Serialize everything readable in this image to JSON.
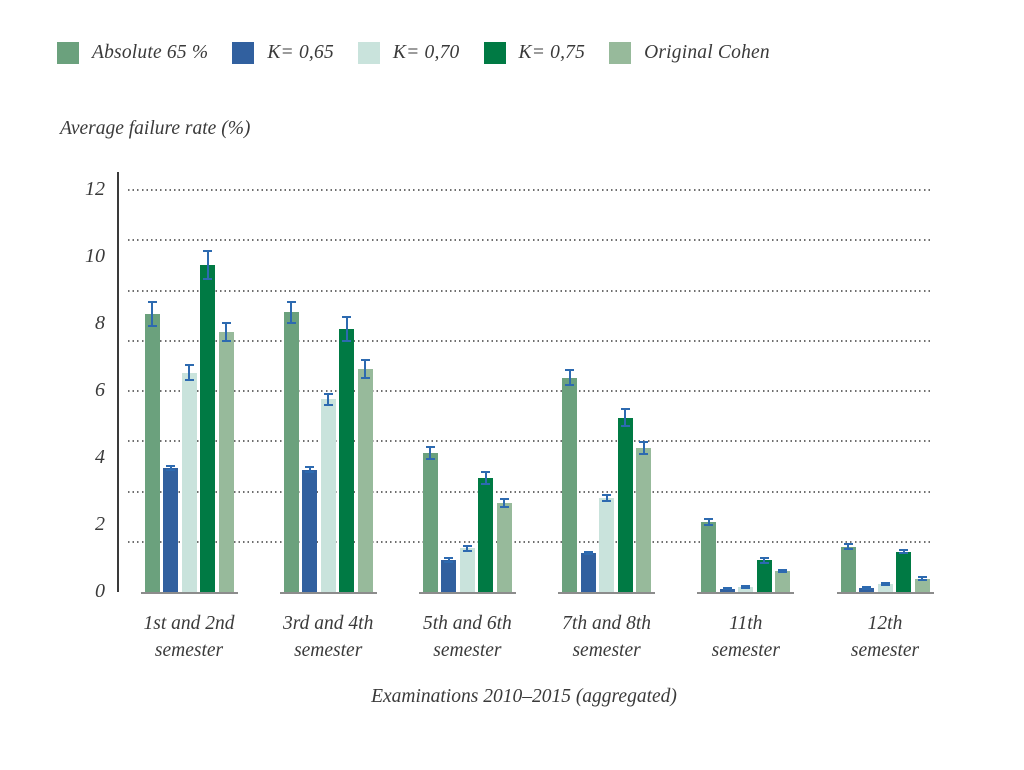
{
  "colors": {
    "text": "#3a3a3a",
    "axis_line": "#3a3a3a",
    "baseline": "#8c8c8c",
    "gridline_dots": "#6e6e6e",
    "error_bar": "#2d6ab0",
    "background": "#ffffff"
  },
  "chart_data": {
    "type": "bar",
    "title": "",
    "ylabel": "Average failure rate (%)",
    "xlabel": "Examinations 2010–2015 (aggregated)",
    "categories": [
      [
        "1st and 2nd",
        "semester"
      ],
      [
        "3rd and 4th",
        "semester"
      ],
      [
        "5th and 6th",
        "semester"
      ],
      [
        "7th and 8th",
        "semester"
      ],
      [
        "11th",
        "semester"
      ],
      [
        "12th",
        "semester"
      ]
    ],
    "series": [
      {
        "name": "Absolute 65 %",
        "color": "#6ba17d",
        "values": [
          8.3,
          8.35,
          4.15,
          6.4,
          2.1,
          1.35
        ],
        "errors": [
          0.4,
          0.35,
          0.2,
          0.25,
          0.12,
          0.1
        ]
      },
      {
        "name": "K= 0,65",
        "color": "#31609f",
        "values": [
          3.7,
          3.65,
          0.95,
          1.15,
          0.1,
          0.12
        ],
        "errors": [
          0.1,
          0.1,
          0.08,
          0.06,
          0.05,
          0.05
        ]
      },
      {
        "name": "K= 0,70",
        "color": "#c9e3dc",
        "values": [
          6.55,
          5.75,
          1.3,
          2.8,
          0.15,
          0.25
        ],
        "errors": [
          0.25,
          0.2,
          0.1,
          0.12,
          0.06,
          0.06
        ]
      },
      {
        "name": "K= 0,75",
        "color": "#007a44",
        "values": [
          9.75,
          7.85,
          3.4,
          5.2,
          0.95,
          1.2
        ],
        "errors": [
          0.45,
          0.4,
          0.2,
          0.28,
          0.1,
          0.08
        ]
      },
      {
        "name": "Original Cohen",
        "color": "#97ba9b",
        "values": [
          7.75,
          6.65,
          2.65,
          4.3,
          0.63,
          0.4
        ],
        "errors": [
          0.3,
          0.3,
          0.15,
          0.22,
          0.07,
          0.07
        ]
      }
    ],
    "yticks": [
      0,
      2,
      4,
      6,
      8,
      10,
      12
    ],
    "gridlines": [
      1.5,
      3,
      4.5,
      6,
      7.5,
      9,
      10.5,
      12
    ],
    "ylim": [
      0,
      12.5
    ],
    "grid": "horizontal dotted",
    "legend_position": "top-left",
    "error_bars": true
  }
}
